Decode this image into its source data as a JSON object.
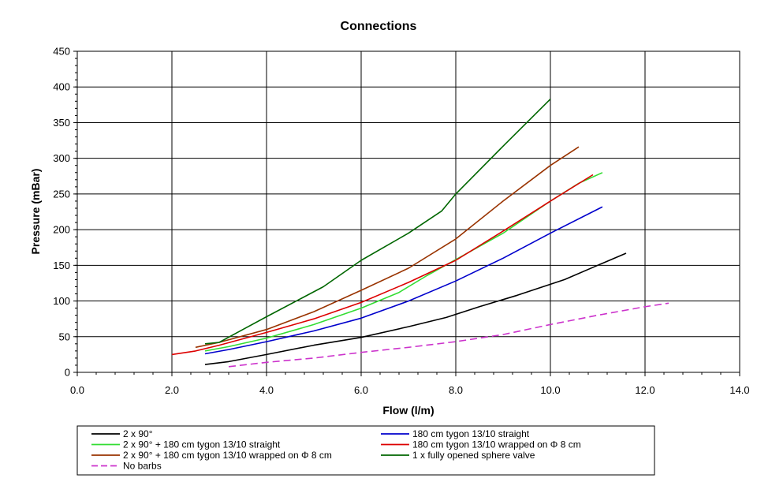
{
  "chart_data": {
    "type": "line",
    "title": "Connections",
    "xlabel": "Flow (l/m)",
    "ylabel": "Pressure (mBar)",
    "xlim": [
      0,
      14
    ],
    "ylim": [
      0,
      450
    ],
    "x_ticks": [
      0,
      2,
      4,
      6,
      8,
      10,
      12,
      14
    ],
    "x_tick_labels": [
      "0.0",
      "2.0",
      "4.0",
      "6.0",
      "8.0",
      "10.0",
      "12.0",
      "14.0"
    ],
    "y_ticks": [
      0,
      50,
      100,
      150,
      200,
      250,
      300,
      350,
      400,
      450
    ],
    "y_tick_labels": [
      "0",
      "50",
      "100",
      "150",
      "200",
      "250",
      "300",
      "350",
      "400",
      "450"
    ],
    "grid": true,
    "legend_position": "bottom",
    "series": [
      {
        "name": "2 x 90°",
        "color": "#000000",
        "dash": false,
        "points": [
          [
            2.7,
            11
          ],
          [
            3.2,
            15
          ],
          [
            4.0,
            25
          ],
          [
            5.0,
            38
          ],
          [
            6.0,
            49
          ],
          [
            7.0,
            64
          ],
          [
            7.8,
            77
          ],
          [
            8.5,
            92
          ],
          [
            9.3,
            108
          ],
          [
            10.3,
            130
          ],
          [
            11.0,
            150
          ],
          [
            11.6,
            167
          ]
        ]
      },
      {
        "name": "180 cm tygon 13/10 straight",
        "color": "#0000CC",
        "dash": false,
        "points": [
          [
            2.7,
            26
          ],
          [
            3.2,
            32
          ],
          [
            4.0,
            43
          ],
          [
            5.0,
            58
          ],
          [
            6.0,
            76
          ],
          [
            7.0,
            100
          ],
          [
            8.0,
            128
          ],
          [
            9.0,
            160
          ],
          [
            10.0,
            195
          ],
          [
            11.1,
            232
          ]
        ]
      },
      {
        "name": "2 x 90° + 180 cm tygon 13/10 straight",
        "color": "#33DD33",
        "dash": false,
        "points": [
          [
            2.7,
            30
          ],
          [
            3.2,
            36
          ],
          [
            4.0,
            48
          ],
          [
            5.0,
            67
          ],
          [
            6.0,
            90
          ],
          [
            6.8,
            112
          ],
          [
            7.4,
            136
          ],
          [
            8.0,
            158
          ],
          [
            9.0,
            195
          ],
          [
            10.0,
            240
          ],
          [
            10.6,
            265
          ],
          [
            11.1,
            280
          ]
        ]
      },
      {
        "name": "180 cm tygon 13/10 wrapped on Φ 8 cm",
        "color": "#DD0000",
        "dash": false,
        "points": [
          [
            2.0,
            25
          ],
          [
            2.5,
            30
          ],
          [
            3.0,
            38
          ],
          [
            4.0,
            56
          ],
          [
            5.0,
            75
          ],
          [
            6.0,
            98
          ],
          [
            7.0,
            126
          ],
          [
            8.0,
            157
          ],
          [
            9.0,
            198
          ],
          [
            10.0,
            240
          ],
          [
            10.9,
            277
          ]
        ]
      },
      {
        "name": "2 x 90° + 180 cm tygon 13/10 wrapped on Φ 8 cm",
        "color": "#993300",
        "dash": false,
        "points": [
          [
            2.5,
            35
          ],
          [
            3.0,
            42
          ],
          [
            4.0,
            60
          ],
          [
            5.0,
            85
          ],
          [
            6.0,
            115
          ],
          [
            7.0,
            146
          ],
          [
            8.0,
            187
          ],
          [
            9.0,
            240
          ],
          [
            10.0,
            290
          ],
          [
            10.6,
            316
          ]
        ]
      },
      {
        "name": "1 x fully opened sphere valve",
        "color": "#006600",
        "dash": false,
        "points": [
          [
            2.7,
            40
          ],
          [
            3.0,
            42
          ],
          [
            3.5,
            60
          ],
          [
            4.0,
            78
          ],
          [
            5.2,
            120
          ],
          [
            6.0,
            157
          ],
          [
            7.0,
            195
          ],
          [
            7.7,
            226
          ],
          [
            8.0,
            250
          ],
          [
            9.0,
            317
          ],
          [
            10.0,
            383
          ]
        ]
      },
      {
        "name": "No barbs",
        "color": "#CC33CC",
        "dash": true,
        "points": [
          [
            3.2,
            8
          ],
          [
            4.0,
            14
          ],
          [
            5.0,
            20
          ],
          [
            6.0,
            28
          ],
          [
            7.0,
            35
          ],
          [
            8.0,
            43
          ],
          [
            9.0,
            53
          ],
          [
            10.0,
            67
          ],
          [
            11.0,
            80
          ],
          [
            12.0,
            92
          ],
          [
            12.5,
            97
          ]
        ]
      }
    ]
  }
}
